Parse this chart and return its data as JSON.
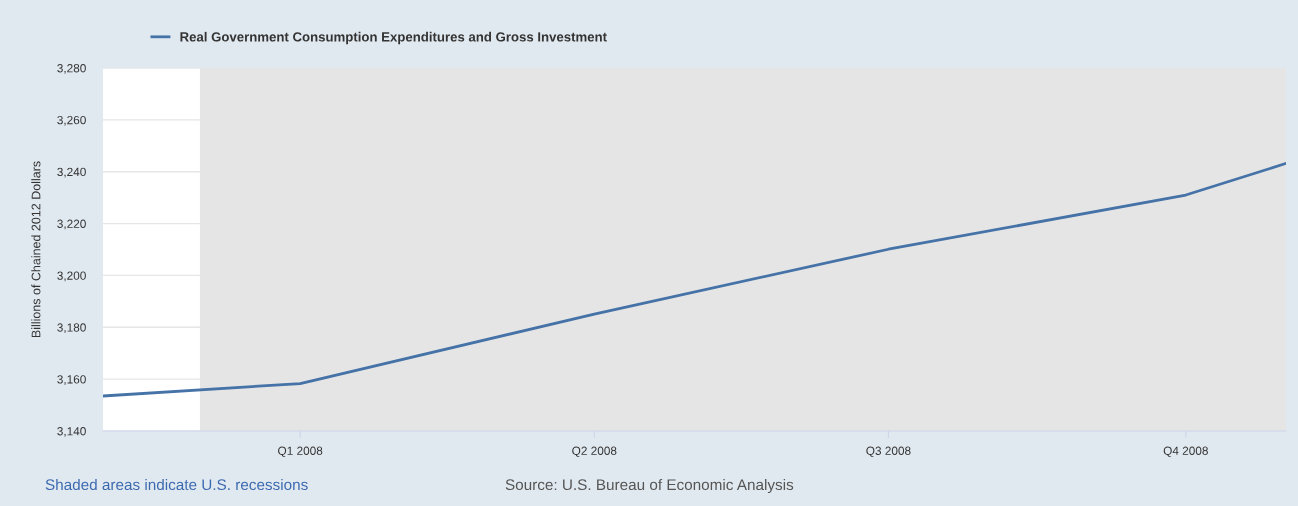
{
  "chart_data": {
    "type": "line",
    "ylabel": "Billions of Chained 2012 Dollars",
    "x": [
      "2007-11-01",
      "2008-01-01",
      "2008-04-01",
      "2008-07-01",
      "2008-10-01",
      "2008-11-01"
    ],
    "series": [
      {
        "name": "Real Government Consumption Expenditures and Gross Investment",
        "color": "#4572a7",
        "values": [
          3153.5,
          3158.3,
          3185.1,
          3210.1,
          3231.0,
          3243.2
        ]
      }
    ],
    "xlim": [
      "2007-11-01",
      "2008-11-01"
    ],
    "xticks": [
      {
        "value": "2008-01-01",
        "label": "Q1 2008"
      },
      {
        "value": "2008-04-01",
        "label": "Q2 2008"
      },
      {
        "value": "2008-07-01",
        "label": "Q3 2008"
      },
      {
        "value": "2008-10-01",
        "label": "Q4 2008"
      }
    ],
    "ylim": [
      3140,
      3280
    ],
    "yticks": [
      {
        "value": 3140,
        "label": "3,140"
      },
      {
        "value": 3160,
        "label": "3,160"
      },
      {
        "value": 3180,
        "label": "3,180"
      },
      {
        "value": 3200,
        "label": "3,200"
      },
      {
        "value": 3220,
        "label": "3,220"
      },
      {
        "value": 3240,
        "label": "3,240"
      },
      {
        "value": 3260,
        "label": "3,260"
      },
      {
        "value": 3280,
        "label": "3,280"
      }
    ],
    "bands": [
      {
        "axis": "x",
        "from": "2007-12-01",
        "to": "2008-11-01",
        "color": "#e5e5e5"
      }
    ],
    "annotations": [
      "Shaded areas indicate U.S. recessions",
      "Source: U.S. Bureau of Economic Analysis"
    ],
    "grid": "y",
    "legend": "top left",
    "marker": "none",
    "line_style": "solid"
  }
}
